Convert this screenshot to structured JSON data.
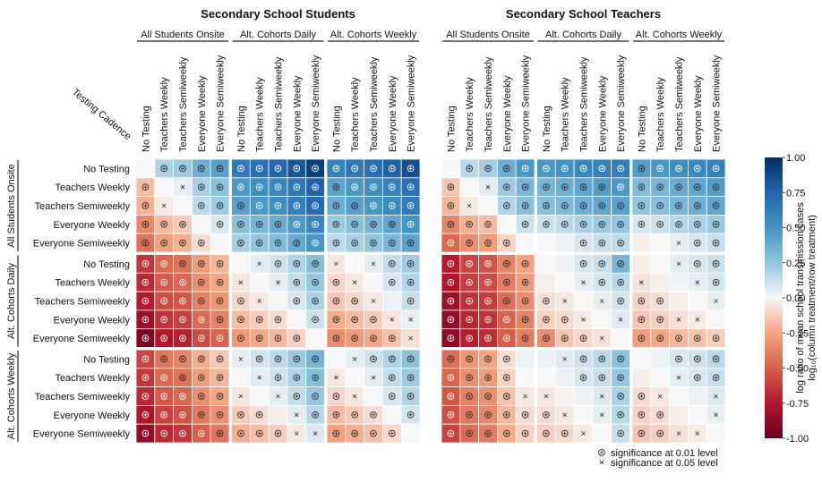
{
  "chart_data": {
    "type": "heatmap",
    "panels": [
      {
        "title": "Secondary School Students",
        "matrix": [
          [
            0.0,
            0.18,
            0.22,
            0.36,
            0.44,
            0.64,
            0.69,
            0.74,
            0.82,
            0.93,
            0.59,
            0.64,
            0.69,
            0.77,
            0.86
          ],
          [
            -0.17,
            0.0,
            0.04,
            0.19,
            0.27,
            0.47,
            0.52,
            0.57,
            0.65,
            0.76,
            0.42,
            0.47,
            0.52,
            0.6,
            0.69
          ],
          [
            -0.21,
            -0.04,
            0.0,
            0.14,
            0.22,
            0.43,
            0.47,
            0.53,
            0.61,
            0.72,
            0.37,
            0.43,
            0.48,
            0.55,
            0.64
          ],
          [
            -0.36,
            -0.19,
            -0.14,
            0.0,
            0.08,
            0.28,
            0.33,
            0.38,
            0.47,
            0.57,
            0.23,
            0.28,
            0.33,
            0.41,
            0.5
          ],
          [
            -0.44,
            -0.27,
            -0.22,
            -0.08,
            0.0,
            0.2,
            0.25,
            0.3,
            0.38,
            0.49,
            0.15,
            0.2,
            0.25,
            0.33,
            0.42
          ],
          [
            -0.64,
            -0.47,
            -0.43,
            -0.28,
            -0.2,
            0.0,
            0.05,
            0.1,
            0.18,
            0.29,
            -0.05,
            0.0,
            0.05,
            0.13,
            0.22
          ],
          [
            -0.69,
            -0.52,
            -0.47,
            -0.33,
            -0.25,
            -0.05,
            0.0,
            0.05,
            0.13,
            0.24,
            -0.1,
            -0.05,
            0.0,
            0.08,
            0.17
          ],
          [
            -0.74,
            -0.57,
            -0.53,
            -0.38,
            -0.3,
            -0.1,
            -0.05,
            0.0,
            0.08,
            0.19,
            -0.15,
            -0.1,
            -0.05,
            0.03,
            0.12
          ],
          [
            -0.82,
            -0.65,
            -0.61,
            -0.47,
            -0.38,
            -0.18,
            -0.13,
            -0.08,
            0.0,
            0.11,
            -0.23,
            -0.18,
            -0.13,
            -0.05,
            0.04
          ],
          [
            -0.93,
            -0.76,
            -0.72,
            -0.57,
            -0.49,
            -0.29,
            -0.24,
            -0.19,
            -0.11,
            0.0,
            -0.34,
            -0.29,
            -0.24,
            -0.16,
            -0.07
          ],
          [
            -0.59,
            -0.42,
            -0.37,
            -0.23,
            -0.15,
            0.05,
            0.1,
            0.15,
            0.23,
            0.34,
            0.0,
            0.05,
            0.1,
            0.18,
            0.27
          ],
          [
            -0.64,
            -0.47,
            -0.43,
            -0.28,
            -0.2,
            0.0,
            0.05,
            0.1,
            0.18,
            0.29,
            -0.05,
            0.0,
            0.05,
            0.13,
            0.22
          ],
          [
            -0.69,
            -0.52,
            -0.48,
            -0.33,
            -0.25,
            -0.05,
            0.0,
            0.05,
            0.13,
            0.24,
            -0.1,
            -0.05,
            0.0,
            0.08,
            0.17
          ],
          [
            -0.77,
            -0.6,
            -0.55,
            -0.41,
            -0.33,
            -0.13,
            -0.08,
            -0.03,
            0.05,
            0.16,
            -0.18,
            -0.13,
            -0.08,
            0.0,
            0.09
          ],
          [
            -0.86,
            -0.69,
            -0.64,
            -0.5,
            -0.42,
            -0.22,
            -0.17,
            -0.12,
            -0.04,
            0.07,
            -0.27,
            -0.22,
            -0.17,
            -0.09,
            0.0
          ]
        ]
      },
      {
        "title": "Secondary School Teachers",
        "matrix": [
          [
            0.0,
            0.15,
            0.2,
            0.37,
            0.48,
            0.48,
            0.51,
            0.56,
            0.6,
            0.62,
            0.45,
            0.48,
            0.53,
            0.56,
            0.6
          ],
          [
            -0.15,
            0.0,
            0.05,
            0.22,
            0.33,
            0.33,
            0.36,
            0.41,
            0.45,
            0.47,
            0.3,
            0.33,
            0.38,
            0.41,
            0.45
          ],
          [
            -0.2,
            -0.05,
            0.0,
            0.17,
            0.28,
            0.28,
            0.31,
            0.36,
            0.4,
            0.42,
            0.25,
            0.28,
            0.33,
            0.36,
            0.4
          ],
          [
            -0.37,
            -0.22,
            -0.17,
            0.0,
            0.11,
            0.11,
            0.14,
            0.19,
            0.23,
            0.25,
            0.08,
            0.11,
            0.16,
            0.19,
            0.23
          ],
          [
            -0.48,
            -0.33,
            -0.28,
            -0.11,
            0.0,
            0.0,
            0.03,
            0.08,
            0.12,
            0.14,
            -0.03,
            0.0,
            0.05,
            0.08,
            0.12
          ],
          [
            -0.74,
            -0.59,
            -0.54,
            -0.37,
            -0.26,
            0.0,
            0.03,
            0.08,
            0.12,
            0.34,
            -0.03,
            0.0,
            0.05,
            0.08,
            0.12
          ],
          [
            -0.77,
            -0.62,
            -0.57,
            -0.4,
            -0.29,
            -0.03,
            0.0,
            0.05,
            0.09,
            0.15,
            -0.06,
            -0.03,
            0.02,
            0.05,
            0.09
          ],
          [
            -0.82,
            -0.67,
            -0.62,
            -0.45,
            -0.34,
            -0.08,
            -0.05,
            0.0,
            0.04,
            0.1,
            -0.11,
            -0.08,
            -0.03,
            0.0,
            0.04
          ],
          [
            -0.86,
            -0.71,
            -0.66,
            -0.49,
            -0.38,
            -0.12,
            -0.09,
            -0.04,
            0.0,
            0.06,
            -0.15,
            -0.12,
            -0.07,
            -0.04,
            0.0
          ],
          [
            -0.88,
            -0.73,
            -0.68,
            -0.51,
            -0.4,
            -0.34,
            -0.15,
            -0.1,
            -0.06,
            0.0,
            -0.27,
            -0.24,
            -0.19,
            -0.16,
            -0.12
          ],
          [
            -0.45,
            -0.3,
            -0.25,
            -0.08,
            0.03,
            0.03,
            0.06,
            0.11,
            0.15,
            0.27,
            0.0,
            0.03,
            0.08,
            0.11,
            0.15
          ],
          [
            -0.48,
            -0.33,
            -0.28,
            -0.11,
            0.0,
            0.0,
            0.03,
            0.08,
            0.12,
            0.24,
            -0.03,
            0.0,
            0.05,
            0.08,
            0.12
          ],
          [
            -0.53,
            -0.38,
            -0.33,
            -0.16,
            -0.05,
            -0.05,
            -0.02,
            0.03,
            0.07,
            0.19,
            -0.08,
            -0.05,
            0.0,
            0.03,
            0.07
          ],
          [
            -0.56,
            -0.41,
            -0.36,
            -0.19,
            -0.08,
            -0.08,
            -0.05,
            0.0,
            0.04,
            0.16,
            -0.11,
            -0.08,
            -0.03,
            0.0,
            0.04
          ],
          [
            -0.6,
            -0.45,
            -0.4,
            -0.23,
            -0.12,
            -0.12,
            -0.09,
            -0.04,
            0.0,
            0.12,
            -0.15,
            -0.12,
            -0.07,
            -0.04,
            0.0
          ]
        ]
      }
    ],
    "groups": [
      "All Students Onsite",
      "Alt. Cohorts Daily",
      "Alt. Cohorts Weekly"
    ],
    "testing_levels": [
      "No Testing",
      "Teachers Weekly",
      "Teachers Semiweekly",
      "Everyone Weekly",
      "Everyone Semiweekly"
    ],
    "corner_label": "Testing Cadence",
    "colorbar": {
      "min": -1.0,
      "max": 1.0,
      "ticks": [
        "-1.00",
        "-0.75",
        "-0.50",
        "-0.25",
        "0.00",
        "0.25",
        "0.50",
        "0.75",
        "1.00"
      ],
      "label_line1": "log ratio of mean school transmission cases",
      "label_line2": "log₁₀(column treatment/row treatment)"
    },
    "significance": {
      "strong_threshold": 0.08,
      "weak_threshold": 0.04,
      "strong_label": "significance at 0.01 level",
      "weak_label": "significance at 0.05 level"
    },
    "colors": {
      "neg_max": "#67001f",
      "neg_mid": "#f4a582",
      "neutral": "#f7f7f7",
      "pos_mid": "#92c5de",
      "pos_max": "#053061"
    }
  }
}
